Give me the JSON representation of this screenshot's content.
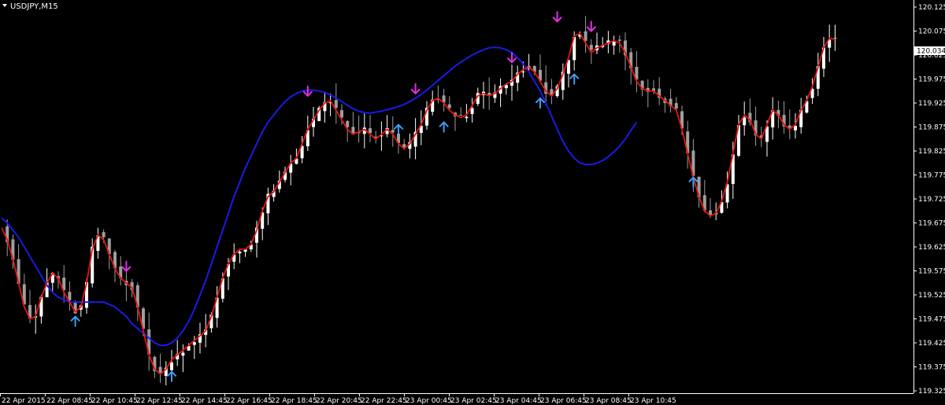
{
  "window": {
    "title": "USDJPY,M15"
  },
  "colors": {
    "background": "#000000",
    "axis": "#ffffff",
    "bull_candle": "#ffffff",
    "bear_candle": "#9e9e9e",
    "fast_line": "#e8140f",
    "slow_line": "#1a1ae6",
    "up_arrow": "#3d9df5",
    "down_arrow": "#e62ee6",
    "price_box_bg": "#ffffff"
  },
  "icons": {
    "menu": "triangle-down-icon",
    "buy_signal": "arrow-up-icon",
    "sell_signal": "arrow-down-icon"
  },
  "chart_data": {
    "type": "candlestick",
    "symbol": "USDJPY",
    "timeframe": "M15",
    "ylim": [
      119.3,
      120.15
    ],
    "y_ticks": [
      "120.125",
      "120.075",
      "120.025",
      "119.975",
      "119.925",
      "119.875",
      "119.825",
      "119.775",
      "119.725",
      "119.675",
      "119.625",
      "119.575",
      "119.525",
      "119.475",
      "119.425",
      "119.375",
      "119.325"
    ],
    "x_labels": [
      "22 Apr 2015",
      "22 Apr 08:45",
      "22 Apr 10:45",
      "22 Apr 12:45",
      "22 Apr 14:45",
      "22 Apr 16:45",
      "22 Apr 18:45",
      "22 Apr 20:45",
      "22 Apr 22:45",
      "23 Apr 00:45",
      "23 Apr 02:45",
      "23 Apr 04:45",
      "23 Apr 06:45",
      "23 Apr 08:45",
      "23 Apr 10:45"
    ],
    "current_price": "120.034",
    "fast_line": [
      119.665,
      119.64,
      119.6,
      119.55,
      119.5,
      119.475,
      119.48,
      119.52,
      119.55,
      119.57,
      119.56,
      119.53,
      119.51,
      119.49,
      119.5,
      119.55,
      119.62,
      119.65,
      119.64,
      119.61,
      119.58,
      119.56,
      119.55,
      119.54,
      119.5,
      119.45,
      119.4,
      119.37,
      119.36,
      119.37,
      119.39,
      119.4,
      119.41,
      119.42,
      119.43,
      119.44,
      119.45,
      119.48,
      119.52,
      119.56,
      119.59,
      119.61,
      119.62,
      119.62,
      119.63,
      119.66,
      119.7,
      119.73,
      119.74,
      119.76,
      119.78,
      119.8,
      119.81,
      119.84,
      119.87,
      119.89,
      119.91,
      119.925,
      119.93,
      119.91,
      119.89,
      119.87,
      119.86,
      119.865,
      119.87,
      119.86,
      119.85,
      119.86,
      119.87,
      119.86,
      119.84,
      119.83,
      119.84,
      119.86,
      119.88,
      119.91,
      119.93,
      119.935,
      119.925,
      119.91,
      119.9,
      119.895,
      119.9,
      119.92,
      119.94,
      119.945,
      119.94,
      119.945,
      119.955,
      119.965,
      119.97,
      119.985,
      119.995,
      120.0,
      119.99,
      119.97,
      119.95,
      119.94,
      119.955,
      119.985,
      120.02,
      120.065,
      120.07,
      120.05,
      120.03,
      120.04,
      120.045,
      120.05,
      120.055,
      120.05,
      120.03,
      120.0,
      119.97,
      119.955,
      119.95,
      119.95,
      119.94,
      119.93,
      119.92,
      119.91,
      119.87,
      119.82,
      119.77,
      119.73,
      119.7,
      119.69,
      119.695,
      119.72,
      119.76,
      119.82,
      119.88,
      119.9,
      119.89,
      119.86,
      119.85,
      119.88,
      119.91,
      119.9,
      119.88,
      119.87,
      119.88,
      119.91,
      119.93,
      119.96,
      120.0,
      120.04,
      120.06,
      120.058
    ],
    "slow_line": [
      119.685,
      119.675,
      119.66,
      119.645,
      119.625,
      119.605,
      119.585,
      119.565,
      119.545,
      119.53,
      119.52,
      119.515,
      119.51,
      119.51,
      119.51,
      119.51,
      119.51,
      119.51,
      119.51,
      119.505,
      119.5,
      119.49,
      119.48,
      119.465,
      119.455,
      119.445,
      119.435,
      119.425,
      119.42,
      119.42,
      119.425,
      119.435,
      119.45,
      119.47,
      119.495,
      119.525,
      119.555,
      119.59,
      119.625,
      119.66,
      119.695,
      119.73,
      119.76,
      119.79,
      119.815,
      119.84,
      119.865,
      119.885,
      119.9,
      119.915,
      119.928,
      119.938,
      119.945,
      119.95,
      119.952,
      119.952,
      119.95,
      119.947,
      119.942,
      119.935,
      119.928,
      119.92,
      119.913,
      119.908,
      119.905,
      119.904,
      119.906,
      119.908,
      119.911,
      119.914,
      119.918,
      119.922,
      119.928,
      119.935,
      119.943,
      119.952,
      119.962,
      119.972,
      119.982,
      119.992,
      120.002,
      120.01,
      120.018,
      120.025,
      120.031,
      120.036,
      120.04,
      120.041,
      120.04,
      120.036,
      120.03,
      120.02,
      120.006,
      119.99,
      119.97,
      119.95,
      119.925,
      119.898,
      119.87,
      119.845,
      119.825,
      119.81,
      119.8,
      119.797,
      119.797,
      119.8,
      119.805,
      119.813,
      119.823,
      119.835,
      119.85,
      119.868,
      119.885
    ]
  },
  "signals": {
    "up": [
      {
        "i": 13,
        "price": 119.46
      },
      {
        "i": 30,
        "price": 119.345
      },
      {
        "i": 70,
        "price": 119.86
      },
      {
        "i": 78,
        "price": 119.865
      },
      {
        "i": 95,
        "price": 119.915
      },
      {
        "i": 101,
        "price": 119.965
      },
      {
        "i": 122,
        "price": 119.75
      }
    ],
    "down": [
      {
        "i": 22,
        "price": 119.575
      },
      {
        "i": 54,
        "price": 119.94
      },
      {
        "i": 73,
        "price": 119.945
      },
      {
        "i": 90,
        "price": 120.01
      },
      {
        "i": 98,
        "price": 120.095
      },
      {
        "i": 104,
        "price": 120.075
      }
    ]
  }
}
